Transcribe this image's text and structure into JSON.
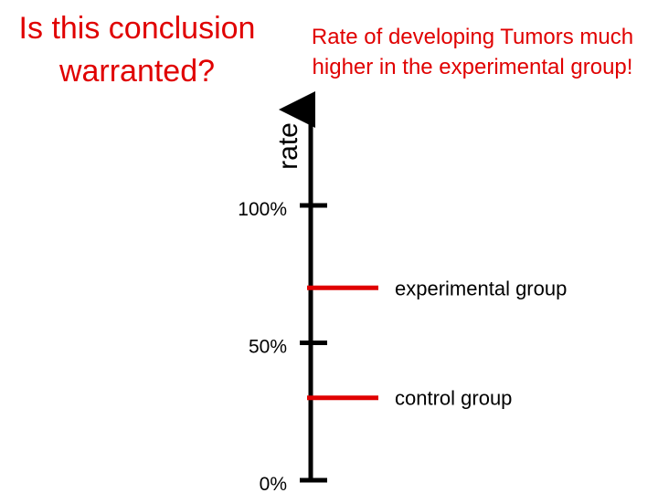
{
  "question": {
    "line1": "Is this conclusion",
    "line2": "warranted?"
  },
  "claim": {
    "line1": "Rate of developing Tumors much",
    "line2": "higher in the experimental group!"
  },
  "colors": {
    "accent": "#e00000",
    "axis": "#000000"
  },
  "chart_data": {
    "type": "bar",
    "ylabel": "rate",
    "ylim": [
      0,
      100
    ],
    "yticks": [
      {
        "value": 0,
        "label": "0%"
      },
      {
        "value": 50,
        "label": "50%"
      },
      {
        "value": 100,
        "label": "100%"
      }
    ],
    "series": [
      {
        "name": "experimental group",
        "value": 70
      },
      {
        "name": "control group",
        "value": 30
      }
    ],
    "grid": false,
    "legend": "none"
  }
}
